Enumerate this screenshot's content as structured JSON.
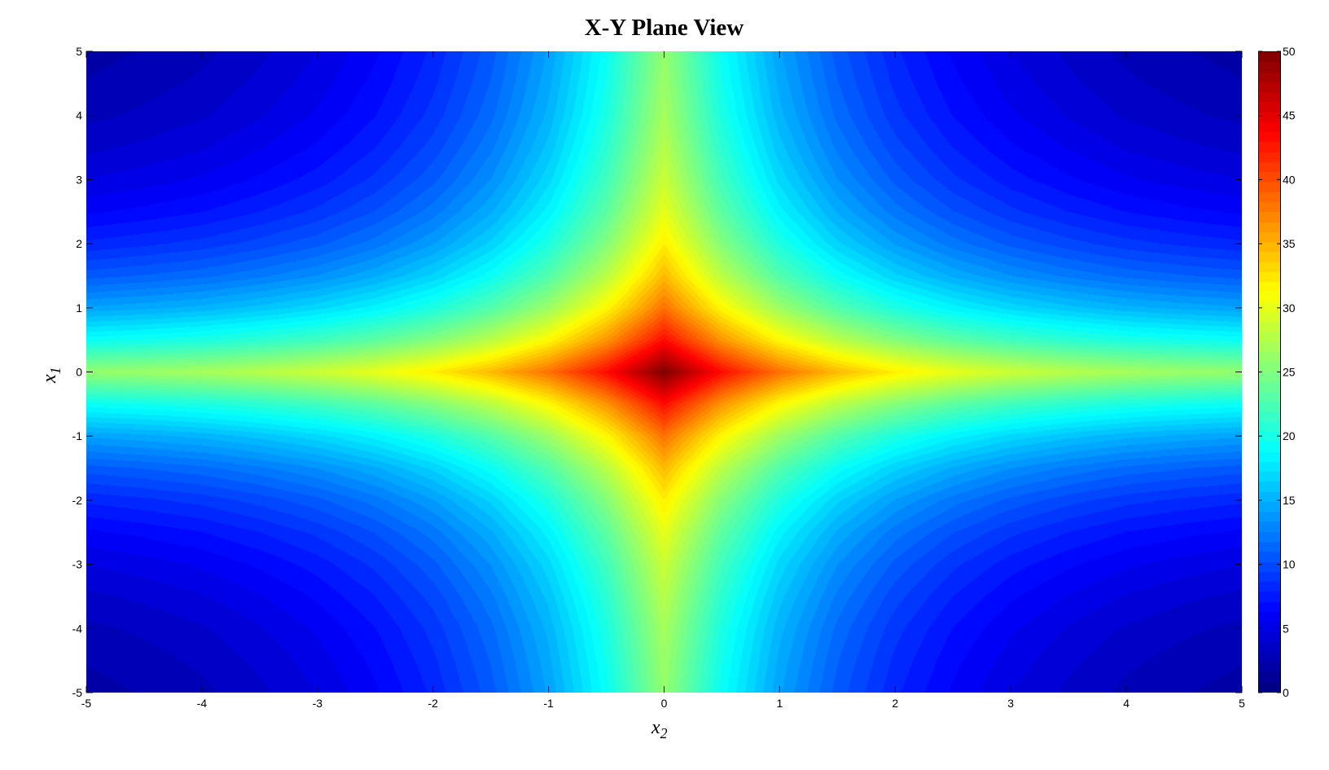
{
  "chart_data": {
    "type": "heatmap",
    "subtype": "filled-contour",
    "title": "X-Y Plane View",
    "xlabel": "x",
    "xlabel_sub": "2",
    "ylabel": "x",
    "ylabel_sub": "1",
    "xlim": [
      -5,
      5
    ],
    "ylim": [
      -5,
      5
    ],
    "xticks": [
      "-5",
      "-4",
      "-3",
      "-2",
      "-1",
      "0",
      "1",
      "2",
      "3",
      "4",
      "5"
    ],
    "yticks": [
      "-5",
      "-4",
      "-3",
      "-2",
      "-1",
      "0",
      "1",
      "2",
      "3",
      "4",
      "5"
    ],
    "colormap": "jet",
    "clim": [
      0,
      50
    ],
    "colorbar_ticks": [
      "0",
      "5",
      "10",
      "15",
      "20",
      "25",
      "30",
      "35",
      "40",
      "45",
      "50"
    ],
    "colorbar_position": "right",
    "grid": false,
    "x": [
      -5,
      -4.5,
      -4,
      -3.5,
      -3,
      -2.5,
      -2,
      -1.5,
      -1,
      -0.5,
      0,
      0.5,
      1,
      1.5,
      2,
      2.5,
      3,
      3.5,
      4,
      4.5,
      5
    ],
    "y": [
      5,
      4.5,
      4,
      3.5,
      3,
      2.5,
      2,
      1.5,
      1,
      0.5,
      0,
      -0.5,
      -1,
      -1.5,
      -2,
      -2.5,
      -3,
      -3.5,
      -4,
      -4.5,
      -5
    ],
    "z": [
      [
        2.0,
        2.4,
        2.9,
        3.7,
        4.7,
        6.1,
        8.0,
        10.6,
        14.2,
        19.2,
        26.0,
        19.2,
        14.2,
        10.6,
        8.0,
        6.1,
        4.7,
        3.7,
        2.9,
        2.4,
        2.0
      ],
      [
        2.4,
        2.8,
        3.3,
        4.1,
        5.1,
        6.5,
        8.4,
        11.0,
        14.6,
        19.6,
        26.4,
        19.6,
        14.6,
        11.0,
        8.4,
        6.5,
        5.1,
        4.1,
        3.3,
        2.8,
        2.4
      ],
      [
        2.9,
        3.3,
        3.8,
        4.6,
        5.6,
        7.0,
        8.9,
        11.5,
        15.1,
        20.1,
        26.9,
        20.1,
        15.1,
        11.5,
        8.9,
        7.0,
        5.6,
        4.6,
        3.8,
        3.3,
        2.9
      ],
      [
        3.7,
        4.1,
        4.6,
        5.4,
        6.4,
        7.8,
        9.7,
        12.3,
        15.9,
        20.9,
        27.7,
        20.9,
        15.9,
        12.3,
        9.7,
        7.8,
        6.4,
        5.4,
        4.6,
        4.1,
        3.7
      ],
      [
        4.7,
        5.1,
        5.6,
        6.4,
        7.4,
        8.8,
        10.7,
        13.3,
        16.9,
        21.9,
        28.7,
        21.9,
        16.9,
        13.3,
        10.7,
        8.8,
        7.4,
        6.4,
        5.6,
        5.1,
        4.7
      ],
      [
        6.1,
        6.5,
        7.0,
        7.8,
        8.8,
        10.2,
        12.1,
        14.7,
        18.3,
        23.3,
        30.1,
        23.3,
        18.3,
        14.7,
        12.1,
        10.2,
        8.8,
        7.8,
        7.0,
        6.5,
        6.1
      ],
      [
        8.0,
        8.4,
        8.9,
        9.7,
        10.7,
        12.1,
        14.0,
        16.6,
        20.2,
        25.2,
        32.0,
        25.2,
        20.2,
        16.6,
        14.0,
        12.1,
        10.7,
        9.7,
        8.9,
        8.4,
        8.0
      ],
      [
        10.6,
        11.0,
        11.5,
        12.3,
        13.3,
        14.7,
        16.6,
        19.2,
        22.8,
        27.8,
        34.6,
        27.8,
        22.8,
        19.2,
        16.6,
        14.7,
        13.3,
        12.3,
        11.5,
        11.0,
        10.6
      ],
      [
        14.2,
        14.6,
        15.1,
        15.9,
        16.9,
        18.3,
        20.2,
        22.8,
        26.4,
        31.4,
        38.2,
        31.4,
        26.4,
        22.8,
        20.2,
        18.3,
        16.9,
        15.9,
        15.1,
        14.6,
        14.2
      ],
      [
        19.2,
        19.6,
        20.1,
        20.9,
        21.9,
        23.3,
        25.2,
        27.8,
        31.4,
        36.4,
        43.2,
        36.4,
        31.4,
        27.8,
        25.2,
        23.3,
        21.9,
        20.9,
        20.1,
        19.6,
        19.2
      ],
      [
        26.0,
        26.4,
        26.9,
        27.7,
        28.7,
        30.1,
        32.0,
        34.6,
        38.2,
        43.2,
        50.0,
        43.2,
        38.2,
        34.6,
        32.0,
        30.1,
        28.7,
        27.7,
        26.9,
        26.4,
        26.0
      ],
      [
        19.2,
        19.6,
        20.1,
        20.9,
        21.9,
        23.3,
        25.2,
        27.8,
        31.4,
        36.4,
        43.2,
        36.4,
        31.4,
        27.8,
        25.2,
        23.3,
        21.9,
        20.9,
        20.1,
        19.6,
        19.2
      ],
      [
        14.2,
        14.6,
        15.1,
        15.9,
        16.9,
        18.3,
        20.2,
        22.8,
        26.4,
        31.4,
        38.2,
        31.4,
        26.4,
        22.8,
        20.2,
        18.3,
        16.9,
        15.9,
        15.1,
        14.6,
        14.2
      ],
      [
        10.6,
        11.0,
        11.5,
        12.3,
        13.3,
        14.7,
        16.6,
        19.2,
        22.8,
        27.8,
        34.6,
        27.8,
        22.8,
        19.2,
        16.6,
        14.7,
        13.3,
        12.3,
        11.5,
        11.0,
        10.6
      ],
      [
        8.0,
        8.4,
        8.9,
        9.7,
        10.7,
        12.1,
        14.0,
        16.6,
        20.2,
        25.2,
        32.0,
        25.2,
        20.2,
        16.6,
        14.0,
        12.1,
        10.7,
        9.7,
        8.9,
        8.4,
        8.0
      ],
      [
        6.1,
        6.5,
        7.0,
        7.8,
        8.8,
        10.2,
        12.1,
        14.7,
        18.3,
        23.3,
        30.1,
        23.3,
        18.3,
        14.7,
        12.1,
        10.2,
        8.8,
        7.8,
        7.0,
        6.5,
        6.1
      ],
      [
        4.7,
        5.1,
        5.6,
        6.4,
        7.4,
        8.8,
        10.7,
        13.3,
        16.9,
        21.9,
        28.7,
        21.9,
        16.9,
        13.3,
        10.7,
        8.8,
        7.4,
        6.4,
        5.6,
        5.1,
        4.7
      ],
      [
        3.7,
        4.1,
        4.6,
        5.4,
        6.4,
        7.8,
        9.7,
        12.3,
        15.9,
        20.9,
        27.7,
        20.9,
        15.9,
        12.3,
        9.7,
        7.8,
        6.4,
        5.4,
        4.6,
        4.1,
        3.7
      ],
      [
        2.9,
        3.3,
        3.8,
        4.6,
        5.6,
        7.0,
        8.9,
        11.5,
        15.1,
        20.1,
        26.9,
        20.1,
        15.1,
        11.5,
        8.9,
        7.0,
        5.6,
        4.6,
        3.8,
        3.3,
        2.9
      ],
      [
        2.4,
        2.8,
        3.3,
        4.1,
        5.1,
        6.5,
        8.4,
        11.0,
        14.6,
        19.6,
        26.4,
        19.6,
        14.6,
        11.0,
        8.4,
        6.5,
        5.1,
        4.1,
        3.3,
        2.8,
        2.4
      ],
      [
        2.0,
        2.4,
        2.9,
        3.7,
        4.7,
        6.1,
        8.0,
        10.6,
        14.2,
        19.2,
        26.0,
        19.2,
        14.2,
        10.6,
        8.0,
        6.1,
        4.7,
        3.7,
        2.9,
        2.4,
        2.0
      ]
    ]
  }
}
